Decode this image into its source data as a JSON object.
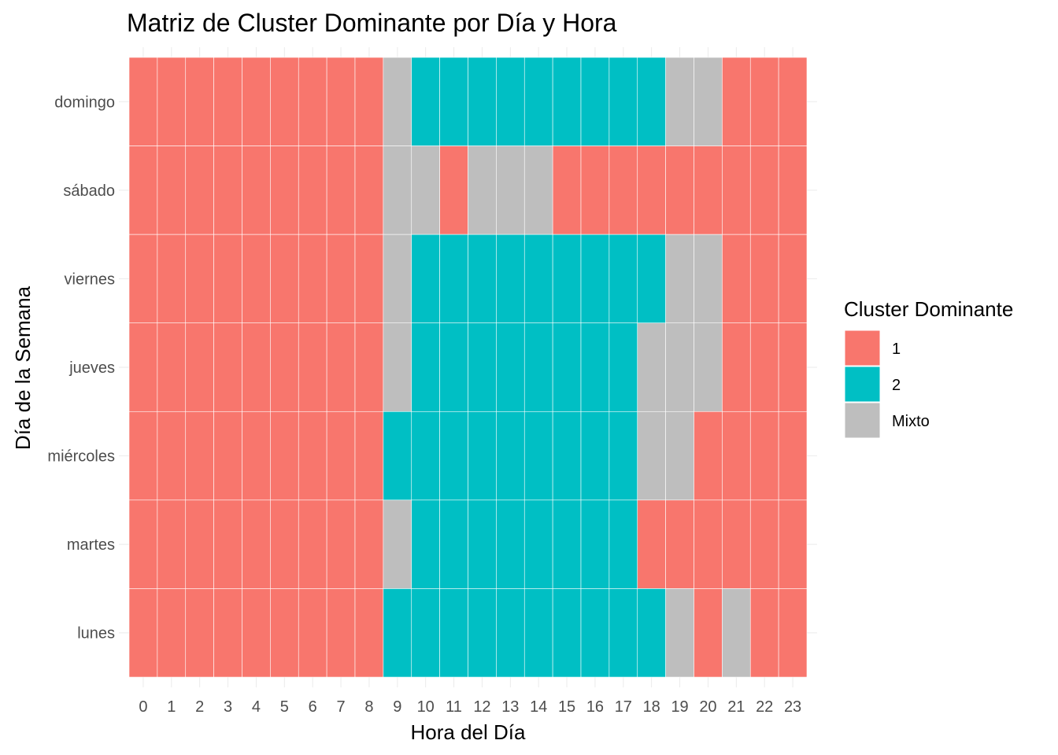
{
  "chart_data": {
    "type": "heatmap",
    "title": "Matriz de Cluster Dominante por Día y Hora",
    "xlabel": "Hora del Día",
    "ylabel": "Día de la Semana",
    "x_categories": [
      "0",
      "1",
      "2",
      "3",
      "4",
      "5",
      "6",
      "7",
      "8",
      "9",
      "10",
      "11",
      "12",
      "13",
      "14",
      "15",
      "16",
      "17",
      "18",
      "19",
      "20",
      "21",
      "22",
      "23"
    ],
    "y_categories": [
      "domingo",
      "sábado",
      "viernes",
      "jueves",
      "miércoles",
      "martes",
      "lunes"
    ],
    "values": [
      [
        "1",
        "1",
        "1",
        "1",
        "1",
        "1",
        "1",
        "1",
        "1",
        "Mixto",
        "2",
        "2",
        "2",
        "2",
        "2",
        "2",
        "2",
        "2",
        "2",
        "Mixto",
        "Mixto",
        "1",
        "1",
        "1"
      ],
      [
        "1",
        "1",
        "1",
        "1",
        "1",
        "1",
        "1",
        "1",
        "1",
        "Mixto",
        "Mixto",
        "1",
        "Mixto",
        "Mixto",
        "Mixto",
        "1",
        "1",
        "1",
        "1",
        "1",
        "1",
        "1",
        "1",
        "1"
      ],
      [
        "1",
        "1",
        "1",
        "1",
        "1",
        "1",
        "1",
        "1",
        "1",
        "Mixto",
        "2",
        "2",
        "2",
        "2",
        "2",
        "2",
        "2",
        "2",
        "2",
        "Mixto",
        "Mixto",
        "1",
        "1",
        "1"
      ],
      [
        "1",
        "1",
        "1",
        "1",
        "1",
        "1",
        "1",
        "1",
        "1",
        "Mixto",
        "2",
        "2",
        "2",
        "2",
        "2",
        "2",
        "2",
        "2",
        "Mixto",
        "Mixto",
        "Mixto",
        "1",
        "1",
        "1"
      ],
      [
        "1",
        "1",
        "1",
        "1",
        "1",
        "1",
        "1",
        "1",
        "1",
        "2",
        "2",
        "2",
        "2",
        "2",
        "2",
        "2",
        "2",
        "2",
        "Mixto",
        "Mixto",
        "1",
        "1",
        "1",
        "1"
      ],
      [
        "1",
        "1",
        "1",
        "1",
        "1",
        "1",
        "1",
        "1",
        "1",
        "Mixto",
        "2",
        "2",
        "2",
        "2",
        "2",
        "2",
        "2",
        "2",
        "1",
        "1",
        "1",
        "1",
        "1",
        "1"
      ],
      [
        "1",
        "1",
        "1",
        "1",
        "1",
        "1",
        "1",
        "1",
        "1",
        "2",
        "2",
        "2",
        "2",
        "2",
        "2",
        "2",
        "2",
        "2",
        "2",
        "Mixto",
        "1",
        "Mixto",
        "1",
        "1"
      ]
    ],
    "legend": {
      "title": "Cluster Dominante",
      "position": "right",
      "items": [
        {
          "label": "1",
          "color": "#F8766D"
        },
        {
          "label": "2",
          "color": "#00BFC4"
        },
        {
          "label": "Mixto",
          "color": "#BEBEBE"
        }
      ]
    },
    "grid": true
  }
}
